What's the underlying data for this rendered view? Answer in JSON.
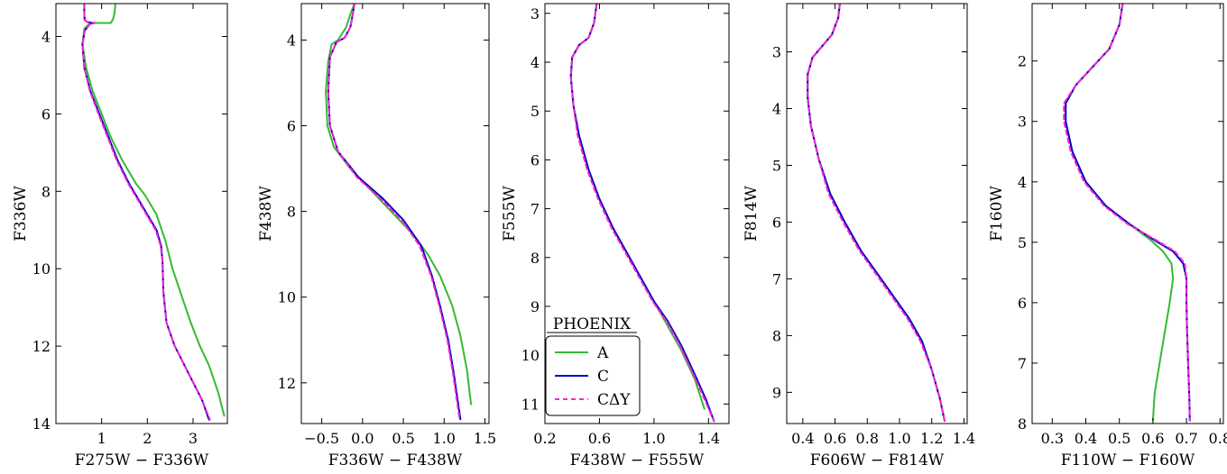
{
  "figure": {
    "colors": {
      "A": "#33bb33",
      "C": "#0000cc",
      "CdY": "#ff22cc"
    },
    "legend": {
      "title": "PHOENIX",
      "placement": "lower-left inside panel 3",
      "entries": [
        {
          "key": "A",
          "label": "A",
          "color": "#33bb33",
          "dash": "solid"
        },
        {
          "key": "C",
          "label": "C",
          "color": "#0000cc",
          "dash": "solid"
        },
        {
          "key": "CdY",
          "label": "CΔY",
          "color": "#ff22cc",
          "dash": "dashed"
        }
      ]
    }
  },
  "chart_data": [
    {
      "type": "line",
      "xlabel": "F275W − F336W",
      "ylabel": "F336W",
      "xlim": [
        0.0,
        3.75
      ],
      "ylim": [
        14.0,
        3.15
      ],
      "y_inverted": true,
      "xticks": [
        1,
        2,
        3
      ],
      "xtick_labels": [
        "1",
        "2",
        "3"
      ],
      "yticks": [
        4,
        6,
        8,
        10,
        12,
        14
      ],
      "ytick_labels": [
        "4",
        "6",
        "8",
        "10",
        "12",
        "14"
      ],
      "series": [
        {
          "name": "A",
          "x": [
            1.3,
            1.28,
            1.25,
            1.2,
            1.0,
            0.75,
            0.62,
            0.58,
            0.66,
            0.8,
            1.0,
            1.2,
            1.45,
            1.75,
            1.95,
            2.2,
            2.4,
            2.55,
            2.75,
            2.95,
            3.15,
            3.35,
            3.55,
            3.68
          ],
          "y": [
            3.15,
            3.4,
            3.55,
            3.65,
            3.65,
            3.65,
            3.8,
            4.2,
            4.8,
            5.4,
            6.0,
            6.6,
            7.2,
            7.8,
            8.1,
            8.6,
            9.3,
            10.0,
            10.7,
            11.4,
            12.0,
            12.5,
            13.2,
            13.8
          ]
        },
        {
          "name": "C",
          "x": [
            0.62,
            0.62,
            0.63,
            0.7,
            0.85,
            0.75,
            0.63,
            0.58,
            0.62,
            0.75,
            0.95,
            1.15,
            1.35,
            1.6,
            1.8,
            2.0,
            2.2,
            2.3,
            2.33,
            2.35,
            2.42,
            2.6,
            2.9,
            3.2,
            3.35
          ],
          "y": [
            3.15,
            3.4,
            3.58,
            3.63,
            3.65,
            3.67,
            3.85,
            4.2,
            4.8,
            5.4,
            6.0,
            6.6,
            7.2,
            7.8,
            8.2,
            8.6,
            9.0,
            9.4,
            9.8,
            10.6,
            11.4,
            12.0,
            12.7,
            13.4,
            13.9
          ]
        },
        {
          "name": "CΔY",
          "x": [
            0.62,
            0.62,
            0.63,
            0.7,
            0.85,
            0.75,
            0.63,
            0.58,
            0.62,
            0.74,
            0.93,
            1.13,
            1.33,
            1.58,
            1.78,
            1.98,
            2.18,
            2.29,
            2.33,
            2.35,
            2.42,
            2.6,
            2.9,
            3.2,
            3.37
          ],
          "y": [
            3.15,
            3.4,
            3.58,
            3.63,
            3.65,
            3.67,
            3.85,
            4.2,
            4.8,
            5.4,
            6.0,
            6.6,
            7.2,
            7.8,
            8.2,
            8.6,
            9.0,
            9.4,
            9.8,
            10.6,
            11.4,
            12.0,
            12.7,
            13.4,
            13.9
          ]
        }
      ]
    },
    {
      "type": "line",
      "xlabel": "F336W − F438W",
      "ylabel": "F438W",
      "xlim": [
        -0.75,
        1.55
      ],
      "ylim": [
        12.95,
        3.15
      ],
      "y_inverted": true,
      "xticks": [
        -0.5,
        0.0,
        0.5,
        1.0,
        1.5
      ],
      "xtick_labels": [
        "−0.5",
        "0.0",
        "0.5",
        "1.0",
        "1.5"
      ],
      "yticks": [
        4,
        6,
        8,
        10,
        12
      ],
      "ytick_labels": [
        "4",
        "6",
        "8",
        "10",
        "12"
      ],
      "series": [
        {
          "name": "A",
          "x": [
            -0.1,
            -0.15,
            -0.2,
            -0.3,
            -0.38,
            -0.42,
            -0.45,
            -0.43,
            -0.35,
            -0.15,
            0.1,
            0.35,
            0.6,
            0.8,
            0.95,
            1.1,
            1.2,
            1.28,
            1.33
          ],
          "y": [
            3.15,
            3.4,
            3.7,
            4.0,
            4.1,
            4.5,
            5.2,
            6.0,
            6.5,
            7.0,
            7.5,
            8.0,
            8.5,
            9.0,
            9.5,
            10.2,
            10.9,
            11.7,
            12.5
          ]
        },
        {
          "name": "C",
          "x": [
            -0.1,
            -0.12,
            -0.15,
            -0.22,
            -0.32,
            -0.4,
            -0.42,
            -0.4,
            -0.3,
            -0.05,
            0.25,
            0.5,
            0.72,
            0.85,
            0.95,
            1.05,
            1.12,
            1.2
          ],
          "y": [
            3.15,
            3.4,
            3.7,
            3.95,
            4.05,
            4.4,
            5.2,
            6.0,
            6.6,
            7.2,
            7.7,
            8.2,
            8.8,
            9.5,
            10.2,
            11.0,
            11.8,
            12.85
          ]
        },
        {
          "name": "CΔY",
          "x": [
            -0.1,
            -0.12,
            -0.15,
            -0.22,
            -0.32,
            -0.4,
            -0.42,
            -0.4,
            -0.3,
            -0.07,
            0.22,
            0.48,
            0.7,
            0.84,
            0.94,
            1.04,
            1.11,
            1.19
          ],
          "y": [
            3.15,
            3.4,
            3.7,
            3.95,
            4.05,
            4.4,
            5.2,
            6.0,
            6.6,
            7.2,
            7.7,
            8.2,
            8.8,
            9.5,
            10.2,
            11.0,
            11.8,
            12.85
          ]
        }
      ]
    },
    {
      "type": "line",
      "xlabel": "F438W − F555W",
      "ylabel": "F555W",
      "xlim": [
        0.2,
        1.55
      ],
      "ylim": [
        11.4,
        2.8
      ],
      "y_inverted": true,
      "xticks": [
        0.2,
        0.6,
        1.0,
        1.4
      ],
      "xtick_labels": [
        "0.2",
        "0.6",
        "1.0",
        "1.4"
      ],
      "yticks": [
        3,
        4,
        5,
        6,
        7,
        8,
        9,
        10,
        11
      ],
      "ytick_labels": [
        "3",
        "4",
        "5",
        "6",
        "7",
        "8",
        "9",
        "10",
        "11"
      ],
      "series": [
        {
          "name": "A",
          "x": [
            0.58,
            0.56,
            0.52,
            0.45,
            0.4,
            0.39,
            0.41,
            0.45,
            0.52,
            0.6,
            0.7,
            0.8,
            0.9,
            1.0,
            1.1,
            1.2,
            1.3,
            1.37
          ],
          "y": [
            2.8,
            3.2,
            3.5,
            3.65,
            3.9,
            4.3,
            4.9,
            5.5,
            6.2,
            6.8,
            7.4,
            7.9,
            8.4,
            8.9,
            9.4,
            9.9,
            10.5,
            11.1
          ]
        },
        {
          "name": "C",
          "x": [
            0.58,
            0.56,
            0.52,
            0.45,
            0.4,
            0.39,
            0.41,
            0.45,
            0.52,
            0.6,
            0.7,
            0.8,
            0.9,
            1.0,
            1.1,
            1.2,
            1.3,
            1.38,
            1.44
          ],
          "y": [
            2.8,
            3.2,
            3.5,
            3.65,
            3.9,
            4.3,
            4.9,
            5.5,
            6.2,
            6.8,
            7.4,
            7.9,
            8.4,
            8.9,
            9.3,
            9.8,
            10.4,
            10.9,
            11.35
          ]
        },
        {
          "name": "CΔY",
          "x": [
            0.58,
            0.56,
            0.52,
            0.45,
            0.4,
            0.39,
            0.41,
            0.44,
            0.51,
            0.59,
            0.69,
            0.79,
            0.89,
            0.99,
            1.09,
            1.19,
            1.29,
            1.37,
            1.44
          ],
          "y": [
            2.8,
            3.2,
            3.5,
            3.65,
            3.9,
            4.3,
            4.9,
            5.5,
            6.2,
            6.8,
            7.4,
            7.9,
            8.4,
            8.9,
            9.3,
            9.8,
            10.4,
            10.9,
            11.35
          ]
        }
      ]
    },
    {
      "type": "line",
      "xlabel": "F606W − F814W",
      "ylabel": "F814W",
      "xlim": [
        0.3,
        1.42
      ],
      "ylim": [
        9.55,
        2.15
      ],
      "y_inverted": true,
      "xticks": [
        0.4,
        0.6,
        0.8,
        1.0,
        1.2,
        1.4
      ],
      "xtick_labels": [
        "0.4",
        "0.6",
        "0.8",
        "1.0",
        "1.2",
        "1.4"
      ],
      "yticks": [
        3,
        4,
        5,
        6,
        7,
        8,
        9
      ],
      "ytick_labels": [
        "3",
        "4",
        "5",
        "6",
        "7",
        "8",
        "9"
      ],
      "series": [
        {
          "name": "A",
          "x": [
            0.63,
            0.62,
            0.58,
            0.52,
            0.46,
            0.43,
            0.43,
            0.45,
            0.5,
            0.57,
            0.66,
            0.76,
            0.86,
            0.96,
            1.06,
            1.14,
            1.2,
            1.25,
            1.28
          ],
          "y": [
            2.15,
            2.4,
            2.7,
            2.9,
            3.1,
            3.4,
            3.8,
            4.3,
            4.9,
            5.5,
            6.0,
            6.5,
            6.9,
            7.3,
            7.7,
            8.1,
            8.6,
            9.1,
            9.5
          ]
        },
        {
          "name": "C",
          "x": [
            0.63,
            0.62,
            0.58,
            0.52,
            0.46,
            0.43,
            0.43,
            0.45,
            0.5,
            0.57,
            0.66,
            0.76,
            0.86,
            0.96,
            1.06,
            1.14,
            1.2,
            1.25,
            1.28
          ],
          "y": [
            2.15,
            2.4,
            2.7,
            2.9,
            3.1,
            3.4,
            3.8,
            4.3,
            4.9,
            5.5,
            6.0,
            6.5,
            6.9,
            7.3,
            7.7,
            8.1,
            8.6,
            9.1,
            9.5
          ]
        },
        {
          "name": "CΔY",
          "x": [
            0.63,
            0.62,
            0.58,
            0.52,
            0.46,
            0.43,
            0.43,
            0.45,
            0.5,
            0.56,
            0.65,
            0.75,
            0.85,
            0.95,
            1.05,
            1.13,
            1.2,
            1.25,
            1.28
          ],
          "y": [
            2.15,
            2.4,
            2.7,
            2.9,
            3.1,
            3.4,
            3.8,
            4.3,
            4.9,
            5.5,
            6.0,
            6.5,
            6.9,
            7.3,
            7.7,
            8.1,
            8.6,
            9.1,
            9.5
          ]
        }
      ]
    },
    {
      "type": "line",
      "xlabel": "F110W − F160W",
      "ylabel": "F160W",
      "xlim": [
        0.24,
        0.81
      ],
      "ylim": [
        8.0,
        1.05
      ],
      "y_inverted": true,
      "xticks": [
        0.3,
        0.4,
        0.5,
        0.6,
        0.7,
        0.8
      ],
      "xtick_labels": [
        "0.3",
        "0.4",
        "0.5",
        "0.6",
        "0.7",
        "0.8"
      ],
      "yticks": [
        2,
        3,
        4,
        5,
        6,
        7,
        8
      ],
      "ytick_labels": [
        "2",
        "3",
        "4",
        "5",
        "6",
        "7",
        "8"
      ],
      "series": [
        {
          "name": "A",
          "x": [
            0.51,
            0.5,
            0.47,
            0.42,
            0.37,
            0.34,
            0.34,
            0.36,
            0.4,
            0.46,
            0.53,
            0.59,
            0.63,
            0.655,
            0.66,
            0.65,
            0.635,
            0.62,
            0.605,
            0.6
          ],
          "y": [
            1.05,
            1.4,
            1.8,
            2.1,
            2.4,
            2.7,
            3.0,
            3.5,
            4.0,
            4.4,
            4.7,
            4.95,
            5.15,
            5.35,
            5.6,
            6.0,
            6.5,
            7.0,
            7.5,
            7.95
          ]
        },
        {
          "name": "C",
          "x": [
            0.51,
            0.5,
            0.47,
            0.42,
            0.37,
            0.34,
            0.34,
            0.36,
            0.4,
            0.46,
            0.53,
            0.6,
            0.66,
            0.69,
            0.7,
            0.7,
            0.702,
            0.705,
            0.708,
            0.71
          ],
          "y": [
            1.05,
            1.4,
            1.8,
            2.1,
            2.4,
            2.7,
            3.0,
            3.5,
            4.0,
            4.4,
            4.7,
            4.95,
            5.15,
            5.35,
            5.6,
            6.0,
            6.5,
            7.0,
            7.5,
            7.95
          ]
        },
        {
          "name": "CΔY",
          "x": [
            0.51,
            0.5,
            0.47,
            0.42,
            0.37,
            0.335,
            0.335,
            0.355,
            0.395,
            0.455,
            0.525,
            0.605,
            0.665,
            0.695,
            0.7,
            0.7,
            0.702,
            0.705,
            0.708,
            0.71
          ],
          "y": [
            1.05,
            1.4,
            1.8,
            2.1,
            2.4,
            2.7,
            3.0,
            3.5,
            4.0,
            4.4,
            4.7,
            4.95,
            5.15,
            5.35,
            5.6,
            6.0,
            6.5,
            7.0,
            7.5,
            7.95
          ]
        }
      ]
    }
  ]
}
